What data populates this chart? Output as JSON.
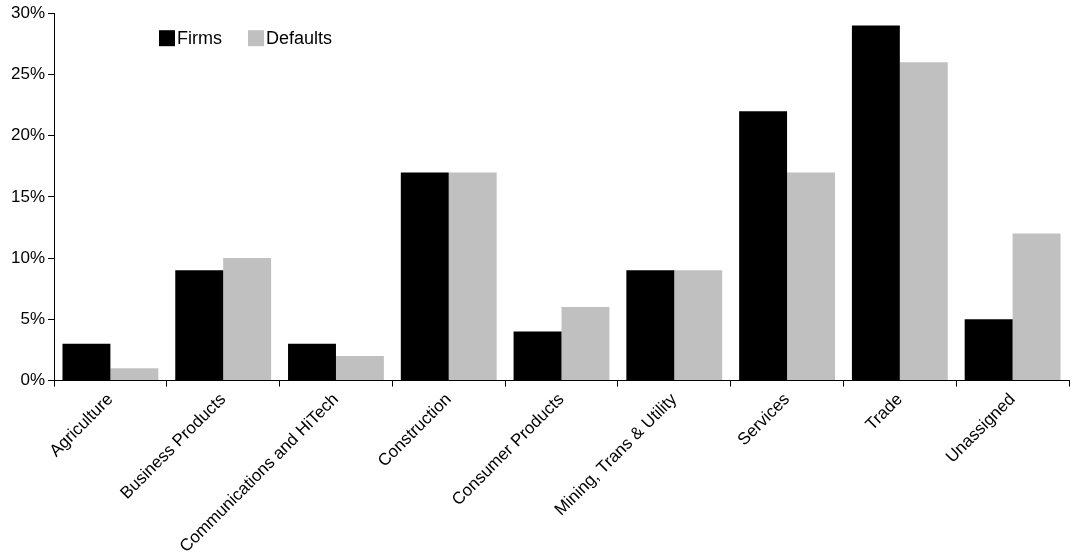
{
  "chart_data": {
    "type": "bar",
    "categories": [
      "Agriculture",
      "Business Products",
      "Communications and HiTech",
      "Construction",
      "Consumer Products",
      "Mining, Trans & Utility",
      "Services",
      "Trade",
      "Unassigned"
    ],
    "series": [
      {
        "name": "Firms",
        "color": "#000000",
        "values": [
          3,
          9,
          3,
          17,
          4,
          9,
          22,
          29,
          5
        ]
      },
      {
        "name": "Defaults",
        "color": "#c0c0c0",
        "values": [
          1,
          10,
          2,
          17,
          6,
          9,
          17,
          26,
          12
        ]
      }
    ],
    "ylim": [
      0,
      30
    ],
    "yticks": [
      {
        "value": 0,
        "label": "0%"
      },
      {
        "value": 5,
        "label": "5%"
      },
      {
        "value": 10,
        "label": "10%"
      },
      {
        "value": 15,
        "label": "15%"
      },
      {
        "value": 20,
        "label": "20%"
      },
      {
        "value": 25,
        "label": "25%"
      },
      {
        "value": 30,
        "label": "30%"
      }
    ],
    "grid": false,
    "legend": "top left"
  }
}
